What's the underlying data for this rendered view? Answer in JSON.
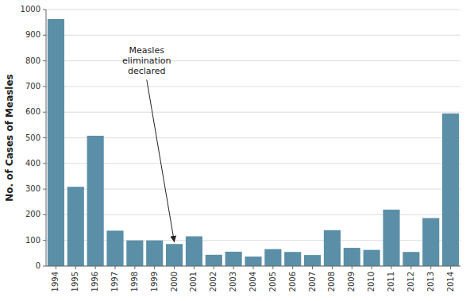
{
  "chart_data": {
    "type": "bar",
    "categories": [
      "1994",
      "1995",
      "1996",
      "1997",
      "1998",
      "1999",
      "2000",
      "2001",
      "2002",
      "2003",
      "2004",
      "2005",
      "2006",
      "2007",
      "2008",
      "2009",
      "2010",
      "2011",
      "2012",
      "2013",
      "2014"
    ],
    "values": [
      963,
      309,
      508,
      138,
      100,
      100,
      86,
      116,
      44,
      56,
      37,
      66,
      55,
      43,
      140,
      71,
      63,
      220,
      55,
      187,
      595
    ],
    "color": "#5b8fa8",
    "y_label": "No. of Cases of Measles",
    "ylim": [
      0,
      1000
    ],
    "yticks": [
      0,
      100,
      200,
      300,
      400,
      500,
      600,
      700,
      800,
      900,
      1000
    ],
    "grid": true,
    "annotations": [
      {
        "text": "Measles\nelimination\ndeclared",
        "x": "2000",
        "y": 90
      }
    ]
  }
}
